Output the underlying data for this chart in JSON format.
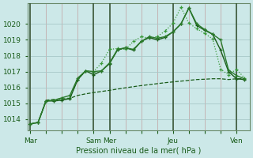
{
  "xlabel": "Pression niveau de la mer( hPa )",
  "background_color": "#cce8e8",
  "grid_color_h": "#a8c8c8",
  "grid_color_v": "#c0a0a0",
  "line_color_dark": "#1a5c1a",
  "line_color_med": "#2a7a2a",
  "line_color_light": "#3a9a3a",
  "day_line_color": "#3a5a3a",
  "ylim": [
    1013.3,
    1021.3
  ],
  "yticks": [
    1014,
    1015,
    1016,
    1017,
    1018,
    1019,
    1020
  ],
  "xtick_labels": [
    "Mar",
    "",
    "",
    "",
    "Sam",
    "Mer",
    "",
    "",
    "",
    "Jeu",
    "",
    "",
    "",
    "Ven"
  ],
  "xtick_positions": [
    0,
    6,
    12,
    18,
    24,
    30,
    36,
    42,
    48,
    54,
    60,
    66,
    72,
    78
  ],
  "day_line_positions": [
    0,
    24,
    30,
    54,
    78
  ],
  "xlim": [
    -1,
    83
  ],
  "n_points": 28,
  "x_vals": [
    0,
    3,
    6,
    9,
    12,
    15,
    18,
    21,
    24,
    27,
    30,
    33,
    36,
    39,
    42,
    45,
    48,
    51,
    54,
    57,
    60,
    63,
    66,
    69,
    72,
    75,
    78,
    81
  ],
  "series_dotted": [
    1013.7,
    1013.8,
    1015.15,
    1015.2,
    1015.25,
    1015.35,
    1016.5,
    1017.05,
    1017.0,
    1017.55,
    1018.4,
    1018.45,
    1018.4,
    1018.9,
    1019.2,
    1019.1,
    1019.2,
    1019.55,
    1020.05,
    1021.05,
    1020.05,
    1019.7,
    1019.4,
    1019.05,
    1017.15,
    1016.8,
    1017.15,
    1016.6
  ],
  "series_solid1": [
    1013.7,
    1013.8,
    1015.15,
    1015.15,
    1015.2,
    1015.3,
    1016.5,
    1017.05,
    1016.8,
    1017.05,
    1017.5,
    1018.35,
    1018.5,
    1018.35,
    1018.9,
    1019.15,
    1019.0,
    1019.15,
    1019.5,
    1020.0,
    1021.0,
    1019.9,
    1019.6,
    1019.35,
    1018.35,
    1017.0,
    1016.55,
    1016.5
  ],
  "series_solid2": [
    1013.7,
    1013.8,
    1015.15,
    1015.2,
    1015.35,
    1015.5,
    1016.6,
    1017.05,
    1017.0,
    1017.05,
    1017.55,
    1018.4,
    1018.5,
    1018.4,
    1018.9,
    1019.2,
    1019.1,
    1019.2,
    1019.5,
    1020.0,
    1021.0,
    1020.0,
    1019.65,
    1019.35,
    1019.0,
    1017.1,
    1016.75,
    1016.55
  ],
  "series_dashed": [
    1013.7,
    1013.8,
    1015.2,
    1015.25,
    1015.28,
    1015.32,
    1015.5,
    1015.6,
    1015.68,
    1015.75,
    1015.82,
    1015.9,
    1015.98,
    1016.05,
    1016.12,
    1016.18,
    1016.24,
    1016.3,
    1016.35,
    1016.4,
    1016.45,
    1016.5,
    1016.52,
    1016.55,
    1016.55,
    1016.5,
    1016.55,
    1016.55
  ]
}
